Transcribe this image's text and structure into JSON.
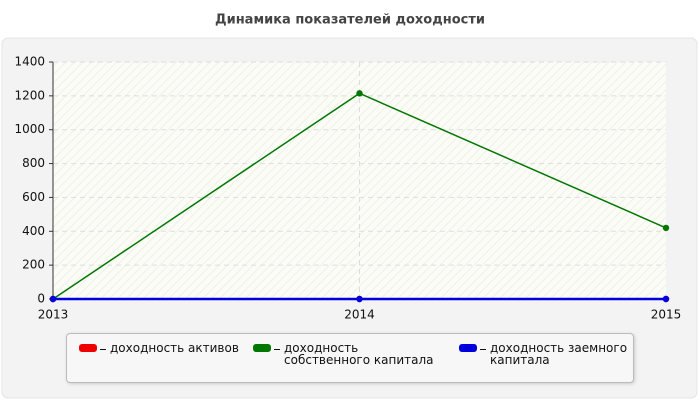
{
  "chart_data": {
    "type": "line",
    "title": "Динамика показателей доходности",
    "categories": [
      "2013",
      "2014",
      "2015"
    ],
    "series": [
      {
        "name": "доходность активов",
        "color": "#ee0000",
        "values": [
          0,
          0,
          0
        ]
      },
      {
        "name": "доходность собственного капитала",
        "color": "#007700",
        "values": [
          0,
          1215,
          420
        ]
      },
      {
        "name": "доходность заемного капитала",
        "color": "#0000dd",
        "values": [
          0,
          0,
          0
        ]
      }
    ],
    "ylim": [
      0,
      1400
    ],
    "yticks": [
      0,
      200,
      400,
      600,
      800,
      1000,
      1200,
      1400
    ],
    "grid": true
  }
}
